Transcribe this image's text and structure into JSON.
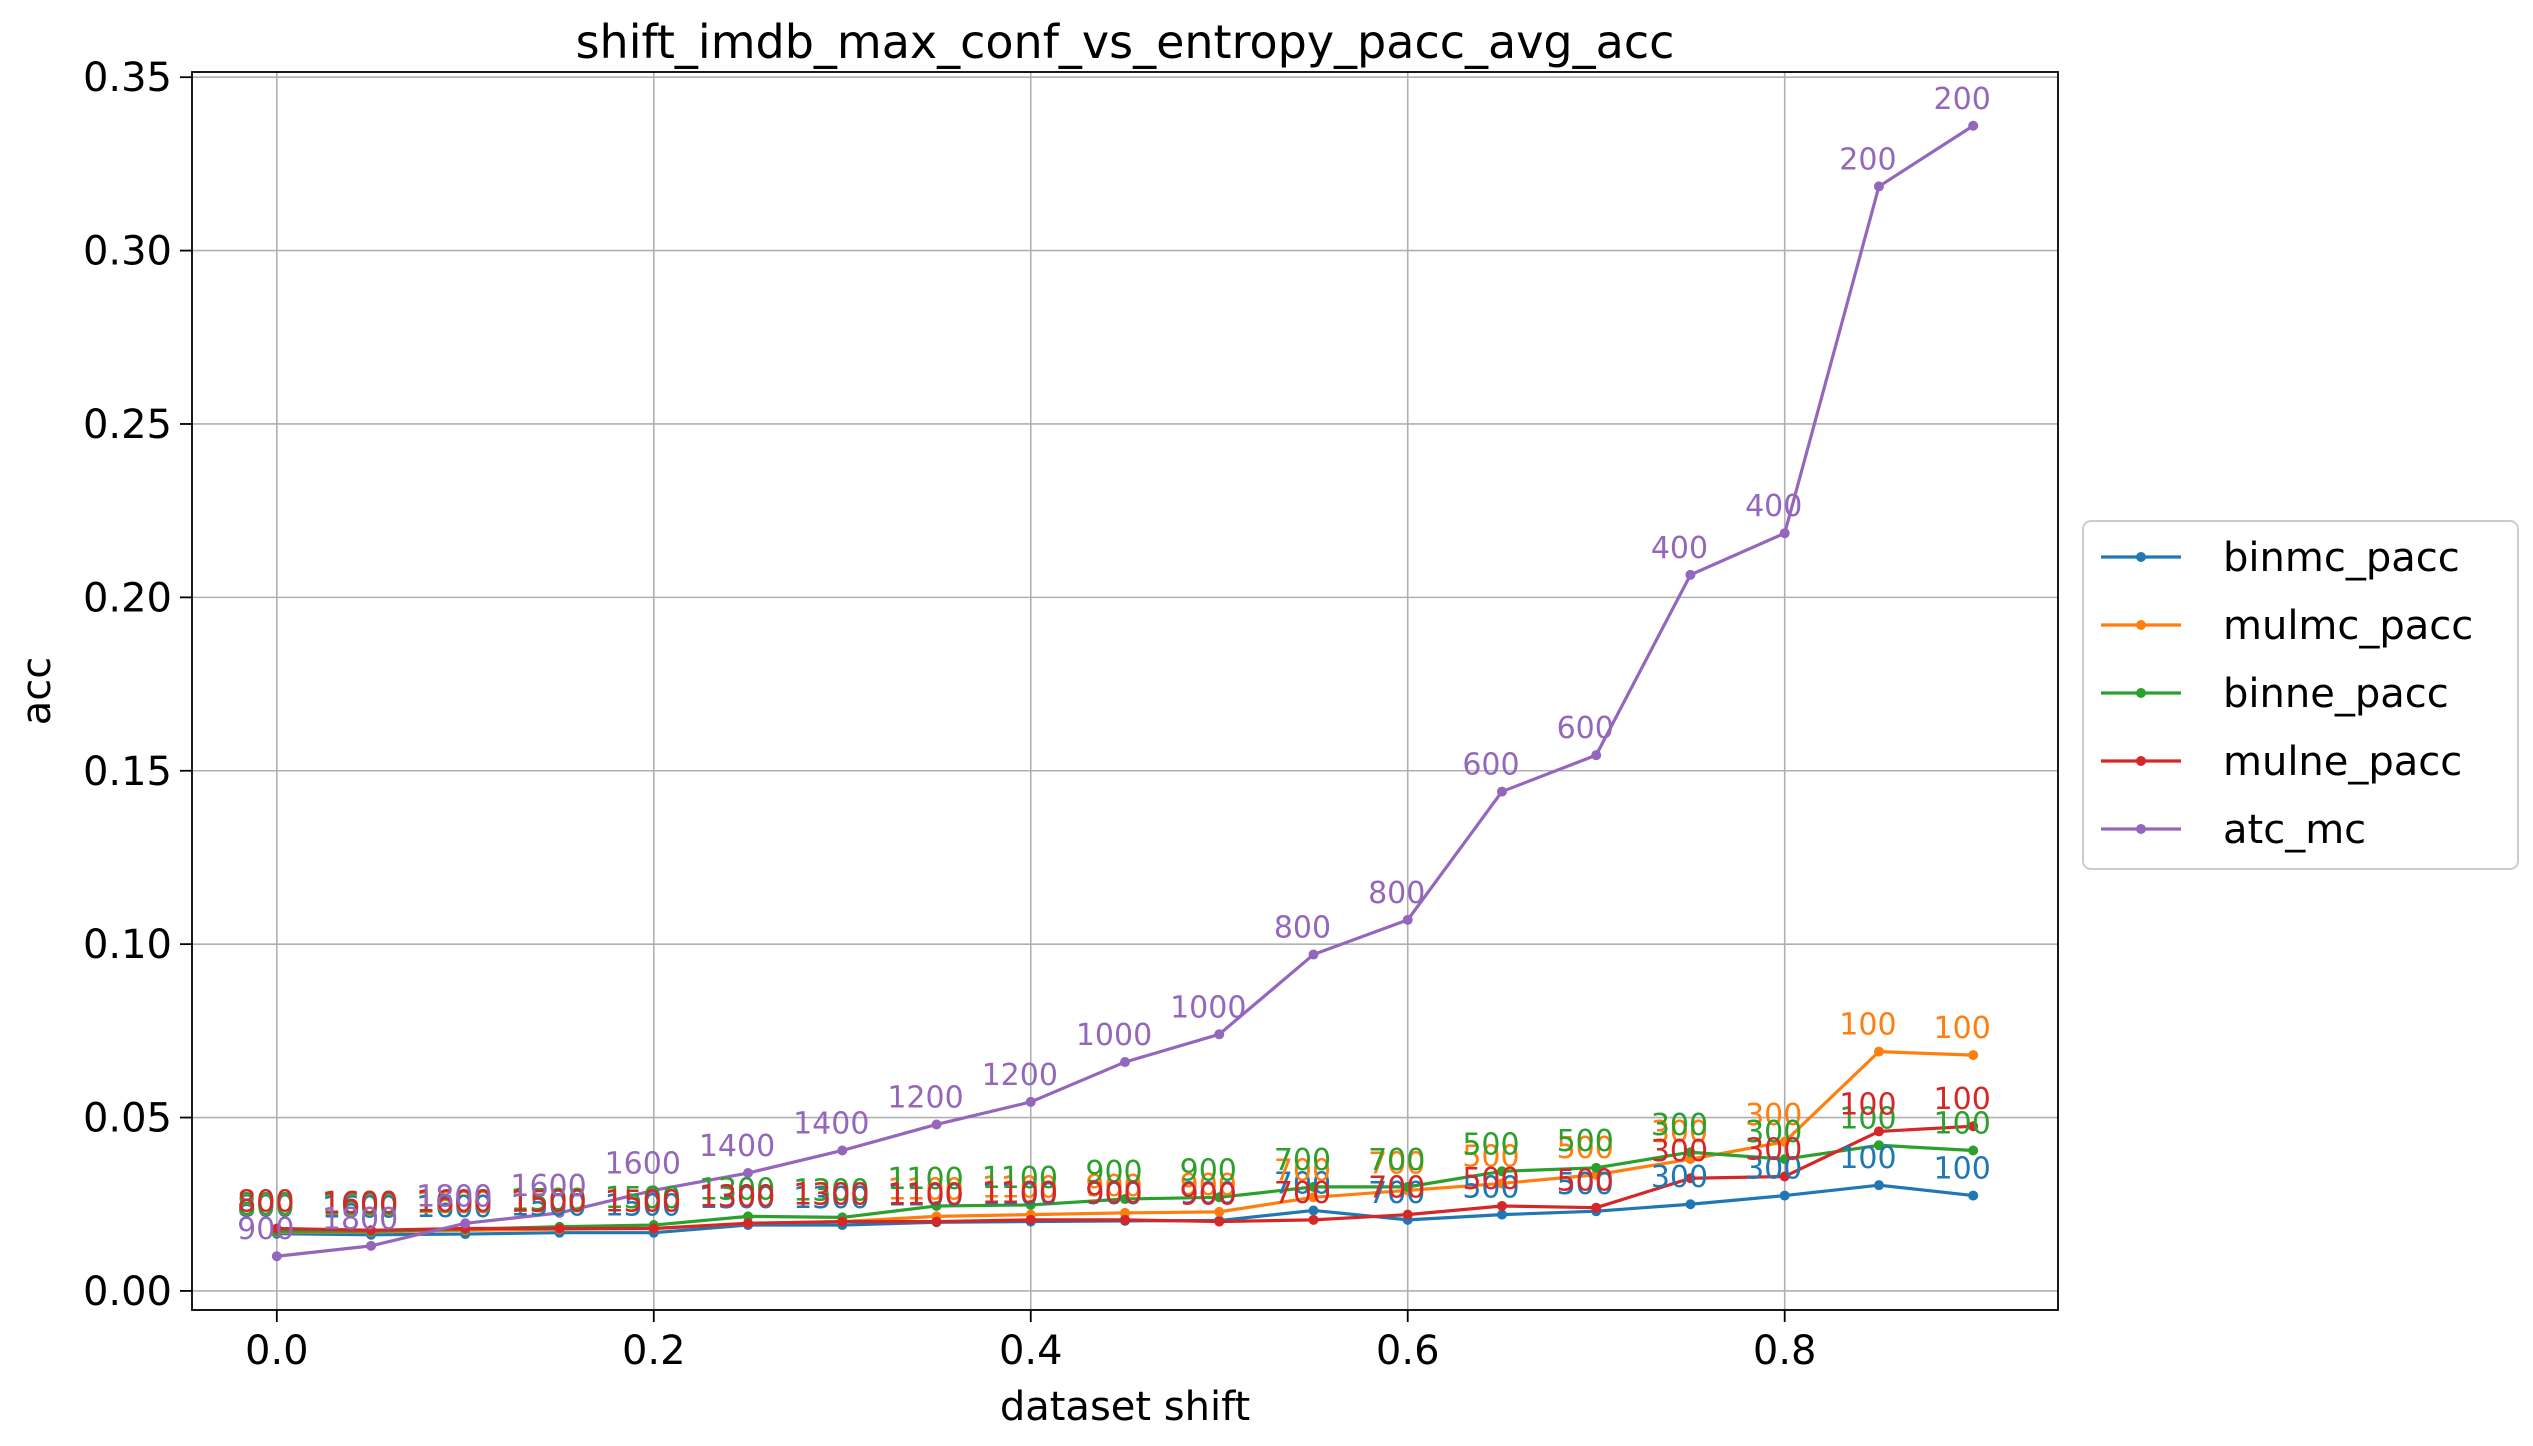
{
  "chart_data": {
    "type": "line",
    "title": "shift_imdb_max_conf_vs_entropy_pacc_avg_acc",
    "xlabel": "dataset shift",
    "ylabel": "acc",
    "xlim": [
      -0.045,
      0.945
    ],
    "ylim": [
      -0.0055,
      0.3515
    ],
    "xticks": [
      0.0,
      0.2,
      0.4,
      0.6,
      0.8
    ],
    "xtick_labels": [
      "0.0",
      "0.2",
      "0.4",
      "0.6",
      "0.8"
    ],
    "yticks": [
      0.0,
      0.05,
      0.1,
      0.15,
      0.2,
      0.25,
      0.3,
      0.35
    ],
    "ytick_labels": [
      "0.00",
      "0.05",
      "0.10",
      "0.15",
      "0.20",
      "0.25",
      "0.30",
      "0.35"
    ],
    "grid": true,
    "legend_position": "outside-right",
    "x": [
      0.0,
      0.05,
      0.1,
      0.15,
      0.2,
      0.25,
      0.3,
      0.35,
      0.4,
      0.45,
      0.5,
      0.55,
      0.6,
      0.65,
      0.7,
      0.75,
      0.8,
      0.85,
      0.9
    ],
    "series": [
      {
        "name": "binmc_pacc",
        "color": "#1f77b4",
        "values": [
          0.0165,
          0.0162,
          0.0164,
          0.0168,
          0.0168,
          0.019,
          0.019,
          0.0198,
          0.02,
          0.0202,
          0.0203,
          0.0232,
          0.0205,
          0.022,
          0.023,
          0.025,
          0.0275,
          0.0305,
          0.0275
        ],
        "labels": [
          "800",
          "1600",
          "1600",
          "1500",
          "1500",
          "1300",
          "1300",
          "1100",
          "1100",
          "900",
          "900",
          "700",
          "700",
          "500",
          "500",
          "300",
          "300",
          "100",
          "100"
        ]
      },
      {
        "name": "mulmc_pacc",
        "color": "#ff7f0e",
        "values": [
          0.017,
          0.017,
          0.0175,
          0.0178,
          0.018,
          0.0195,
          0.02,
          0.0215,
          0.022,
          0.0225,
          0.0228,
          0.027,
          0.029,
          0.031,
          0.0335,
          0.038,
          0.043,
          0.069,
          0.068
        ],
        "labels": [
          "800",
          "1600",
          "1600",
          "1500",
          "1500",
          "1300",
          "1300",
          "1100",
          "1100",
          "900",
          "900",
          "700",
          "700",
          "500",
          "500",
          "300",
          "300",
          "100",
          "100"
        ]
      },
      {
        "name": "binne_pacc",
        "color": "#2ca02c",
        "values": [
          0.0172,
          0.0172,
          0.0178,
          0.0185,
          0.019,
          0.0215,
          0.0212,
          0.0245,
          0.0248,
          0.0265,
          0.027,
          0.03,
          0.03,
          0.0345,
          0.0355,
          0.04,
          0.038,
          0.042,
          0.0405
        ],
        "labels": [
          "800",
          "1600",
          "1600",
          "1500",
          "1500",
          "1300",
          "1300",
          "1100",
          "1100",
          "900",
          "900",
          "700",
          "700",
          "500",
          "500",
          "300",
          "300",
          "100",
          "100"
        ]
      },
      {
        "name": "mulne_pacc",
        "color": "#d62728",
        "values": [
          0.018,
          0.0175,
          0.018,
          0.018,
          0.018,
          0.0195,
          0.02,
          0.02,
          0.0205,
          0.0205,
          0.02,
          0.0205,
          0.022,
          0.0245,
          0.024,
          0.0325,
          0.033,
          0.046,
          0.0475
        ],
        "labels": [
          "800",
          "1600",
          "1600",
          "1500",
          "1500",
          "1300",
          "1300",
          "1100",
          "1100",
          "900",
          "900",
          "700",
          "700",
          "500",
          "500",
          "300",
          "300",
          "100",
          "100"
        ]
      },
      {
        "name": "atc_mc",
        "color": "#9467bd",
        "values": [
          0.01,
          0.013,
          0.0195,
          0.0225,
          0.029,
          0.034,
          0.0405,
          0.048,
          0.0545,
          0.066,
          0.074,
          0.097,
          0.107,
          0.144,
          0.1545,
          0.2065,
          0.2185,
          0.3185,
          0.336
        ],
        "labels": [
          "900",
          "1800",
          "1800",
          "1600",
          "1600",
          "1400",
          "1400",
          "1200",
          "1200",
          "1000",
          "1000",
          "800",
          "800",
          "600",
          "600",
          "400",
          "400",
          "200",
          "200"
        ]
      }
    ]
  }
}
